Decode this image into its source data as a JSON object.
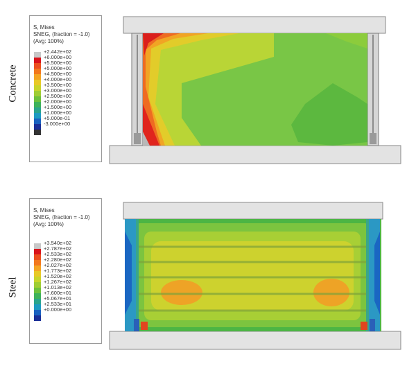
{
  "panels": [
    {
      "row_label": "Concrete",
      "legend": {
        "title_lines": [
          "S, Mises",
          "SNEG, (fraction = -1.0)",
          "(Avg: 100%)"
        ],
        "values": [
          "+2.442e+02",
          "+6.000e+00",
          "+5.500e+00",
          "+5.000e+00",
          "+4.500e+00",
          "+4.000e+00",
          "+3.500e+00",
          "+3.000e+00",
          "+2.500e+00",
          "+2.000e+00",
          "+1.500e+00",
          "+1.000e+00",
          "+5.000e-01",
          "-3.000e+00"
        ],
        "colors": [
          "#c8c8c8",
          "#d9131b",
          "#ec4f1f",
          "#f2781e",
          "#f4a524",
          "#e8c927",
          "#c8d52b",
          "#9fcd34",
          "#6dc13d",
          "#3eb25a",
          "#2ba58c",
          "#1e9bc1",
          "#1a62c0",
          "#1b2f97",
          "#333333"
        ]
      }
    },
    {
      "row_label": "Steel",
      "legend": {
        "title_lines": [
          "S, Mises",
          "SNEG, (fraction = -1.0)",
          "(Avg: 100%)"
        ],
        "values": [
          "+3.540e+02",
          "+2.787e+02",
          "+2.533e+02",
          "+2.280e+02",
          "+2.027e+02",
          "+1.773e+02",
          "+1.520e+02",
          "+1.267e+02",
          "+1.013e+02",
          "+7.600e+01",
          "+5.067e+01",
          "+2.533e+01",
          "+0.000e+00"
        ],
        "colors": [
          "#c8c8c8",
          "#d9131b",
          "#ec4f1f",
          "#f2781e",
          "#f4a524",
          "#e8c927",
          "#c8d52b",
          "#9fcd34",
          "#6dc13d",
          "#3eb25a",
          "#2ba58c",
          "#1e9bc1",
          "#1a62c0",
          "#1b2f97"
        ]
      }
    }
  ]
}
